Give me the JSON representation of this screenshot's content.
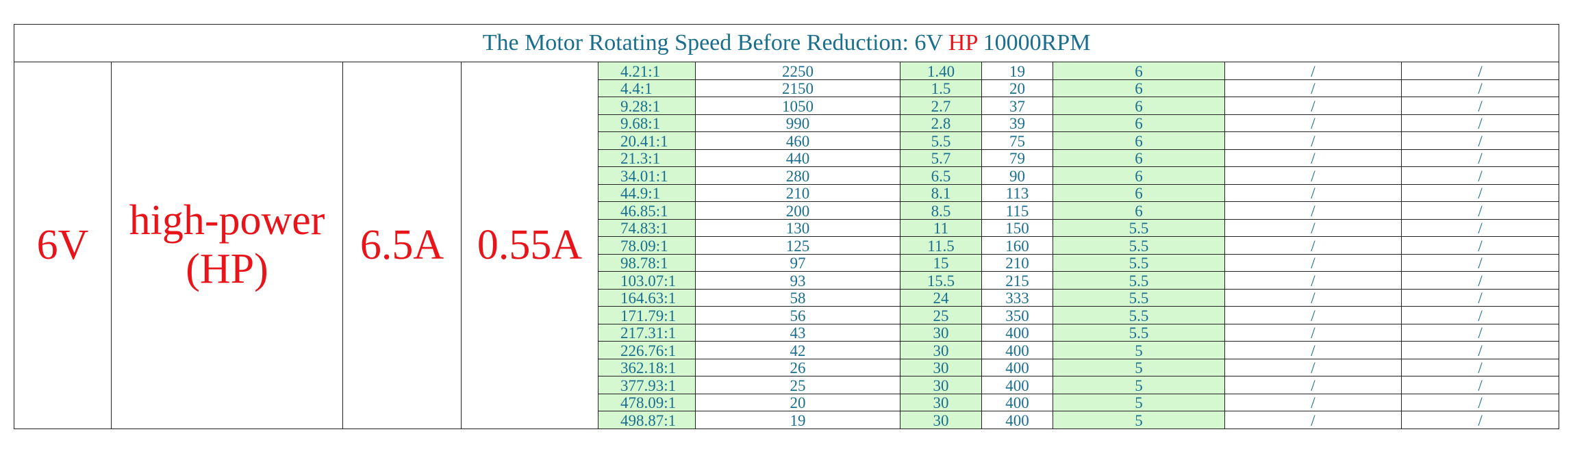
{
  "table": {
    "title": [
      "The Motor Rotating Speed Before Reduction: 6V ",
      "HP",
      " 10000RPM"
    ],
    "left": [
      "6V",
      "high-power",
      "(HP)",
      "6.5A",
      "0.55A"
    ],
    "rows": [
      [
        "4.21:1",
        "2250",
        "1.40",
        "19",
        "6",
        "/",
        "/"
      ],
      [
        "4.4:1",
        "2150",
        "1.5",
        "20",
        "6",
        "/",
        "/"
      ],
      [
        "9.28:1",
        "1050",
        "2.7",
        "37",
        "6",
        "/",
        "/"
      ],
      [
        "9.68:1",
        "990",
        "2.8",
        "39",
        "6",
        "/",
        "/"
      ],
      [
        "20.41:1",
        "460",
        "5.5",
        "75",
        "6",
        "/",
        "/"
      ],
      [
        "21.3:1",
        "440",
        "5.7",
        "79",
        "6",
        "/",
        "/"
      ],
      [
        "34.01:1",
        "280",
        "6.5",
        "90",
        "6",
        "/",
        "/"
      ],
      [
        "44.9:1",
        "210",
        "8.1",
        "113",
        "6",
        "/",
        "/"
      ],
      [
        "46.85:1",
        "200",
        "8.5",
        "115",
        "6",
        "/",
        "/"
      ],
      [
        "74.83:1",
        "130",
        "11",
        "150",
        "5.5",
        "/",
        "/"
      ],
      [
        "78.09:1",
        "125",
        "11.5",
        "160",
        "5.5",
        "/",
        "/"
      ],
      [
        "98.78:1",
        "97",
        "15",
        "210",
        "5.5",
        "/",
        "/"
      ],
      [
        "103.07:1",
        "93",
        "15.5",
        "215",
        "5.5",
        "/",
        "/"
      ],
      [
        "164.63:1",
        "58",
        "24",
        "333",
        "5.5",
        "/",
        "/"
      ],
      [
        "171.79:1",
        "56",
        "25",
        "350",
        "5.5",
        "/",
        "/"
      ],
      [
        "217.31:1",
        "43",
        "30",
        "400",
        "5.5",
        "/",
        "/"
      ],
      [
        "226.76:1",
        "42",
        "30",
        "400",
        "5",
        "/",
        "/"
      ],
      [
        "362.18:1",
        "26",
        "30",
        "400",
        "5",
        "/",
        "/"
      ],
      [
        "377.93:1",
        "25",
        "30",
        "400",
        "5",
        "/",
        "/"
      ],
      [
        "478.09:1",
        "20",
        "30",
        "400",
        "5",
        "/",
        "/"
      ],
      [
        "498.87:1",
        "19",
        "30",
        "400",
        "5",
        "/",
        "/"
      ]
    ]
  }
}
